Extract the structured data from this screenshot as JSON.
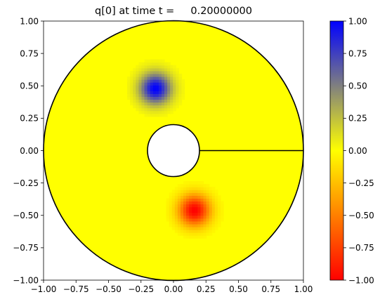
{
  "chart_data": {
    "type": "heatmap",
    "title": "q[0] at time t =     0.20000000",
    "xlabel": "",
    "ylabel": "",
    "xlim": [
      -1.0,
      1.0
    ],
    "ylim": [
      -1.0,
      1.0
    ],
    "x_ticks": [
      "−1.00",
      "−0.75",
      "−0.50",
      "−0.25",
      "0.00",
      "0.25",
      "0.50",
      "0.75",
      "1.00"
    ],
    "y_ticks": [
      "1.00",
      "0.75",
      "0.50",
      "0.25",
      "0.00",
      "−0.25",
      "−0.50",
      "−0.75",
      "−1.00"
    ],
    "domain": {
      "outer_radius": 1.0,
      "inner_radius": 0.2,
      "cut_along_positive_x_axis": true
    },
    "background_value": 0.0,
    "blobs": [
      {
        "center": [
          -0.15,
          0.47
        ],
        "peak": 1.0,
        "sigma": 0.085
      },
      {
        "center": [
          0.15,
          -0.47
        ],
        "peak": -1.0,
        "sigma": 0.085
      }
    ],
    "colorbar": {
      "min": -1.0,
      "max": 1.0,
      "colors": [
        "#ff0000",
        "#ffff00",
        "#0000ff"
      ],
      "tick_values": [
        1.0,
        0.75,
        0.5,
        0.25,
        0.0,
        -0.25,
        -0.5,
        -0.75,
        -1.0
      ],
      "tick_labels": [
        "1.00",
        "0.75",
        "0.50",
        "0.25",
        "0.00",
        "−0.25",
        "−0.50",
        "−0.75",
        "−1.00"
      ]
    }
  }
}
